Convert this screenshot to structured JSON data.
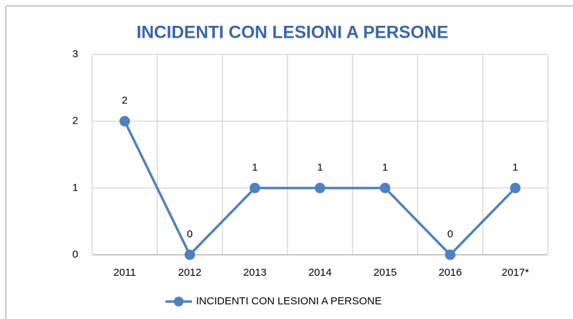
{
  "chart_data": {
    "type": "line",
    "title": "INCIDENTI CON LESIONI A PERSONE",
    "categories": [
      "2011",
      "2012",
      "2013",
      "2014",
      "2015",
      "2016",
      "2017*"
    ],
    "series": [
      {
        "name": "INCIDENTI CON LESIONI A PERSONE",
        "color": "#4f81bd",
        "values": [
          2,
          0,
          1,
          1,
          1,
          0,
          1
        ]
      }
    ],
    "ylim": [
      0,
      3
    ],
    "yticks": [
      0,
      1,
      2,
      3
    ],
    "grid": true,
    "legend": "bottom"
  }
}
